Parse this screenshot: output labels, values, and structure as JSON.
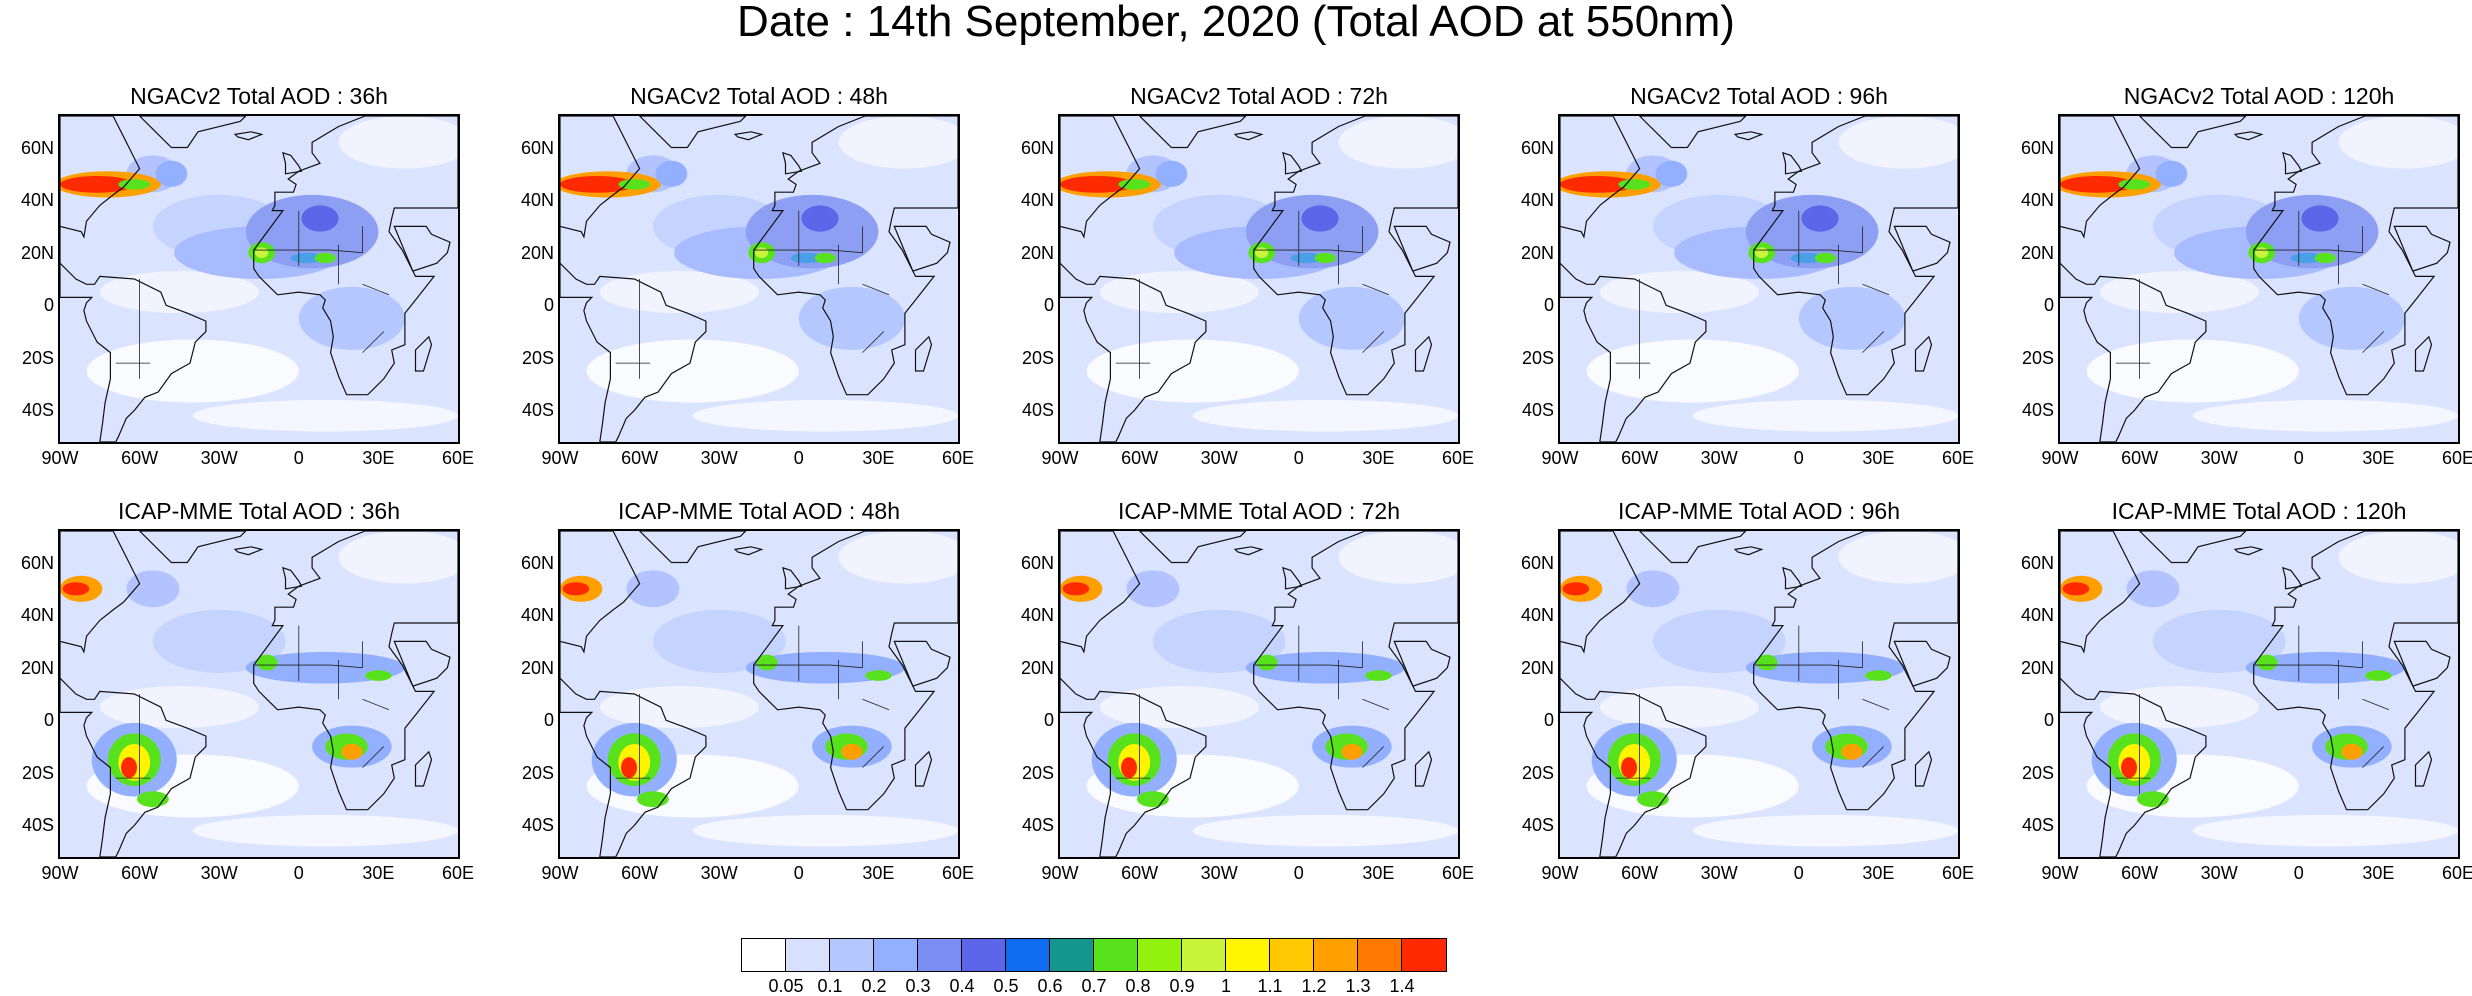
{
  "title": "Date : 14th September, 2020 (Total AOD at 550nm)",
  "lat_labels": [
    "60N",
    "40N",
    "20N",
    "0",
    "20S",
    "40S"
  ],
  "lon_labels": [
    "90W",
    "60W",
    "30W",
    "0",
    "30E",
    "60E"
  ],
  "panels": [
    {
      "title": "NGACv2 Total AOD : 36h"
    },
    {
      "title": "NGACv2 Total AOD : 48h"
    },
    {
      "title": "NGACv2 Total AOD : 72h"
    },
    {
      "title": "NGACv2 Total AOD : 96h"
    },
    {
      "title": "NGACv2 Total AOD : 120h"
    },
    {
      "title": "ICAP-MME Total AOD : 36h"
    },
    {
      "title": "ICAP-MME Total AOD : 48h"
    },
    {
      "title": "ICAP-MME Total AOD : 72h"
    },
    {
      "title": "ICAP-MME Total AOD : 96h"
    },
    {
      "title": "ICAP-MME Total AOD : 120h"
    }
  ],
  "colorbar": {
    "labels": [
      "0.05",
      "0.1",
      "0.2",
      "0.3",
      "0.4",
      "0.5",
      "0.6",
      "0.7",
      "0.8",
      "0.9",
      "1",
      "1.1",
      "1.2",
      "1.3",
      "1.4"
    ],
    "colors": [
      "#ffffff",
      "#d7e1ff",
      "#b4c8ff",
      "#93afff",
      "#7a8ef5",
      "#5c66e8",
      "#0f6cf0",
      "#15968c",
      "#58e21e",
      "#92f20e",
      "#c8f53c",
      "#fff500",
      "#ffc800",
      "#ffa000",
      "#ff7800",
      "#ff2a00"
    ]
  }
}
